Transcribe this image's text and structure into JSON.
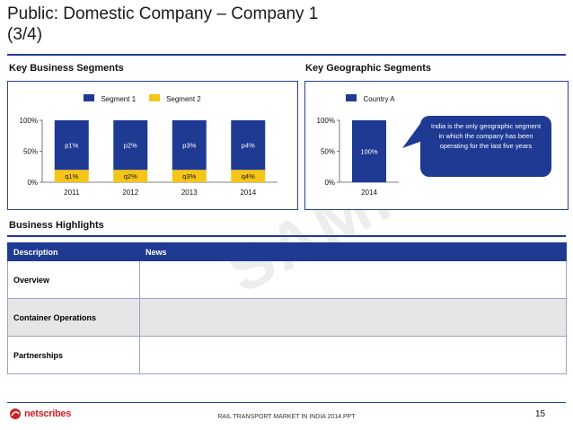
{
  "page": {
    "title_line1": "Public: Domestic Company – Company 1",
    "title_line2": "(3/4)",
    "watermark": "SAMPLE",
    "footer": "RAIL TRANSPORT MARKET IN INDIA 2014.PPT",
    "page_number": "15",
    "logo_text": "netscribes"
  },
  "segments": {
    "heading": "Key Business Segments",
    "chart_data": {
      "type": "bar",
      "stacked": true,
      "categories": [
        "2011",
        "2012",
        "2013",
        "2014"
      ],
      "series": [
        {
          "name": "Segment 1",
          "values": [
            80,
            80,
            80,
            80
          ],
          "labels": [
            "p1%",
            "p2%",
            "p3%",
            "p4%"
          ],
          "color": "#1f3a93"
        },
        {
          "name": "Segment 2",
          "values": [
            20,
            20,
            20,
            20
          ],
          "labels": [
            "q1%",
            "q2%",
            "q3%",
            "q4%"
          ],
          "color": "#f5c518"
        }
      ],
      "yticks": [
        "0%",
        "50%",
        "100%"
      ],
      "ylim": [
        0,
        100
      ],
      "legend": "top"
    }
  },
  "geographic": {
    "heading": "Key Geographic Segments",
    "chart_data": {
      "type": "bar",
      "categories": [
        "2014"
      ],
      "series": [
        {
          "name": "Country A",
          "values": [
            100
          ],
          "labels": [
            "100%"
          ],
          "color": "#1f3a93"
        }
      ],
      "yticks": [
        "0%",
        "50%",
        "100%"
      ],
      "ylim": [
        0,
        100
      ],
      "legend": "top"
    },
    "callout": "India is the only geographic segment in which the company has been operating for the last five years"
  },
  "highlights": {
    "heading": "Business Highlights",
    "columns": [
      "Description",
      "News"
    ],
    "rows": [
      {
        "label": "Overview",
        "news": ""
      },
      {
        "label": "Container Operations",
        "news": ""
      },
      {
        "label": "Partnerships",
        "news": ""
      }
    ]
  },
  "colors": {
    "accent": "#1f3a93",
    "segment2": "#f5c518",
    "logo_red": "#d32027"
  }
}
